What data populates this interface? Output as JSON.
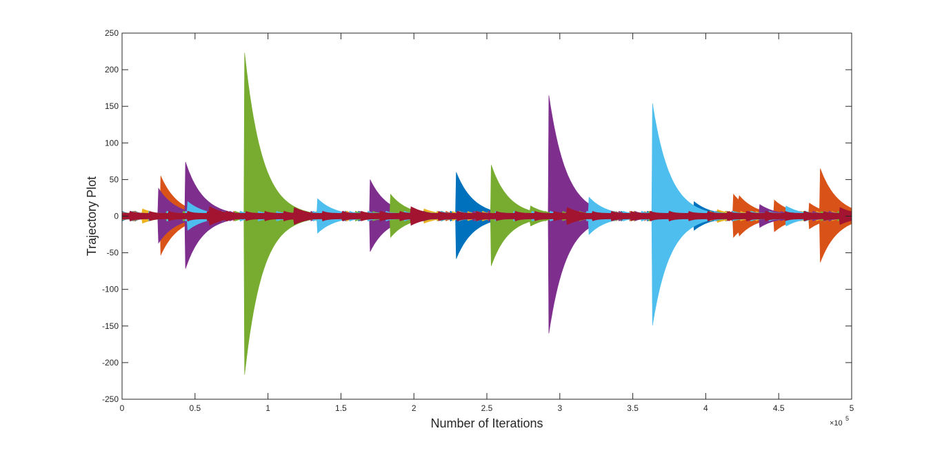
{
  "chart_data": {
    "type": "line",
    "title": "",
    "xlabel": "Number of Iterations",
    "ylabel": "Trajectory Plot",
    "xlim": [
      0,
      500000
    ],
    "ylim": [
      -250,
      250
    ],
    "x_exponent_label": "×10",
    "x_exponent_power": "5",
    "x_ticks": [
      {
        "value": 0,
        "label": "0"
      },
      {
        "value": 50000,
        "label": "0.5"
      },
      {
        "value": 100000,
        "label": "1"
      },
      {
        "value": 150000,
        "label": "1.5"
      },
      {
        "value": 200000,
        "label": "2"
      },
      {
        "value": 250000,
        "label": "2.5"
      },
      {
        "value": 300000,
        "label": "3"
      },
      {
        "value": 350000,
        "label": "3.5"
      },
      {
        "value": 400000,
        "label": "4"
      },
      {
        "value": 450000,
        "label": "4.5"
      },
      {
        "value": 500000,
        "label": "5"
      }
    ],
    "y_ticks": [
      {
        "value": 250,
        "label": "250"
      },
      {
        "value": 200,
        "label": "200"
      },
      {
        "value": 150,
        "label": "150"
      },
      {
        "value": 100,
        "label": "100"
      },
      {
        "value": 50,
        "label": "50"
      },
      {
        "value": 0,
        "label": "0"
      },
      {
        "value": -50,
        "label": "-50"
      },
      {
        "value": -100,
        "label": "-100"
      },
      {
        "value": -150,
        "label": "-150"
      },
      {
        "value": -200,
        "label": "-200"
      },
      {
        "value": -250,
        "label": "-250"
      }
    ],
    "grid": false,
    "baseline_amplitude": 7,
    "decay_width": 12000,
    "series": [
      {
        "color": "#0072BD",
        "spikes": [
          [
            229000,
            60
          ],
          [
            231500,
            32
          ],
          [
            365000,
            70
          ],
          [
            392000,
            20
          ]
        ]
      },
      {
        "color": "#D95319",
        "spikes": [
          [
            26500,
            55
          ],
          [
            48000,
            22
          ],
          [
            172000,
            20
          ],
          [
            419000,
            30
          ],
          [
            423000,
            28
          ],
          [
            447000,
            22
          ],
          [
            478500,
            65
          ],
          [
            471000,
            18
          ]
        ]
      },
      {
        "color": "#EDB120",
        "spikes": [
          [
            14000,
            10
          ],
          [
            96000,
            9
          ],
          [
            207000,
            10
          ],
          [
            262000,
            9
          ],
          [
            331000,
            8
          ],
          [
            408000,
            9
          ]
        ]
      },
      {
        "color": "#7E2F8E",
        "spikes": [
          [
            25000,
            38
          ],
          [
            43500,
            74
          ],
          [
            170000,
            50
          ],
          [
            292500,
            165
          ],
          [
            437000,
            16
          ]
        ]
      },
      {
        "color": "#77AC30",
        "spikes": [
          [
            84000,
            223
          ],
          [
            184000,
            30
          ],
          [
            253000,
            70
          ],
          [
            280000,
            14
          ],
          [
            384000,
            12
          ]
        ]
      },
      {
        "color": "#4DBEEE",
        "spikes": [
          [
            45000,
            20
          ],
          [
            134000,
            24
          ],
          [
            320000,
            26
          ],
          [
            363500,
            154
          ],
          [
            455000,
            14
          ]
        ]
      },
      {
        "color": "#A2142F",
        "spikes": [
          [
            60000,
            13
          ],
          [
            118000,
            12
          ],
          [
            198000,
            13
          ],
          [
            305000,
            12
          ],
          [
            492000,
            12
          ]
        ]
      }
    ]
  }
}
